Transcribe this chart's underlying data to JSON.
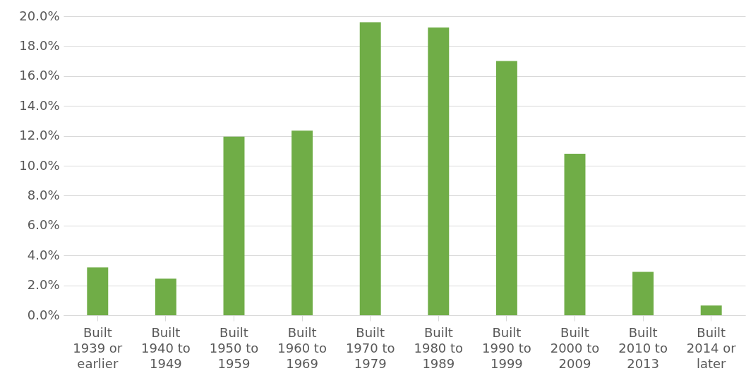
{
  "chart_data": {
    "type": "bar",
    "categories": [
      "Built 1939 or earlier",
      "Built 1940 to 1949",
      "Built 1950 to 1959",
      "Built 1960 to 1969",
      "Built 1970 to 1979",
      "Built 1980 to 1989",
      "Built 1990 to 1999",
      "Built 2000 to 2009",
      "Built 2010 to 2013",
      "Built 2014 or later"
    ],
    "values": [
      3.2,
      2.45,
      11.95,
      12.35,
      19.6,
      19.25,
      17.0,
      10.8,
      2.9,
      0.65
    ],
    "color": "#70ad47",
    "ylim": [
      0,
      20
    ],
    "yticks": [
      {
        "value": 0,
        "label": "0.0%"
      },
      {
        "value": 2,
        "label": "2.0%"
      },
      {
        "value": 4,
        "label": "4.0%"
      },
      {
        "value": 6,
        "label": "6.0%"
      },
      {
        "value": 8,
        "label": "8.0%"
      },
      {
        "value": 10,
        "label": "10.0%"
      },
      {
        "value": 12,
        "label": "12.0%"
      },
      {
        "value": 14,
        "label": "14.0%"
      },
      {
        "value": 16,
        "label": "16.0%"
      },
      {
        "value": 18,
        "label": "18.0%"
      },
      {
        "value": 20,
        "label": "20.0%"
      }
    ],
    "grid": "y"
  }
}
